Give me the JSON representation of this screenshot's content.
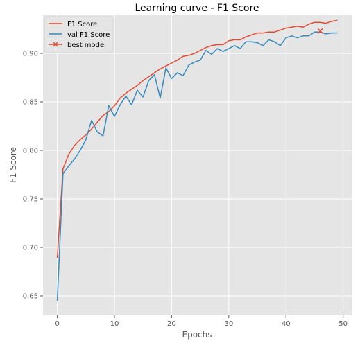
{
  "chart_data": {
    "type": "line",
    "title": "Learning curve - F1 Score",
    "xlabel": "Epochs",
    "ylabel": "F1 Score",
    "xlim": [
      -2.5,
      51.5
    ],
    "ylim": [
      0.63,
      0.94
    ],
    "xticks": [
      0,
      10,
      20,
      30,
      40,
      50
    ],
    "yticks": [
      0.65,
      0.7,
      0.75,
      0.8,
      0.85,
      0.9
    ],
    "grid": true,
    "legend_position": "upper-left",
    "series": [
      {
        "name": "F1 Score",
        "color": "#E24A33",
        "x": [
          0,
          1,
          2,
          3,
          4,
          5,
          6,
          7,
          8,
          9,
          10,
          11,
          12,
          13,
          14,
          15,
          16,
          17,
          18,
          19,
          20,
          21,
          22,
          23,
          24,
          25,
          26,
          27,
          28,
          29,
          30,
          31,
          32,
          33,
          34,
          35,
          36,
          37,
          38,
          39,
          40,
          41,
          42,
          43,
          44,
          45,
          46,
          47,
          48,
          49
        ],
        "values": [
          0.689,
          0.781,
          0.796,
          0.805,
          0.811,
          0.816,
          0.822,
          0.829,
          0.836,
          0.84,
          0.846,
          0.854,
          0.859,
          0.863,
          0.867,
          0.872,
          0.876,
          0.88,
          0.884,
          0.887,
          0.89,
          0.893,
          0.897,
          0.898,
          0.9,
          0.903,
          0.906,
          0.908,
          0.909,
          0.909,
          0.913,
          0.914,
          0.914,
          0.917,
          0.919,
          0.921,
          0.921,
          0.922,
          0.922,
          0.924,
          0.926,
          0.927,
          0.928,
          0.927,
          0.93,
          0.932,
          0.932,
          0.931,
          0.933,
          0.934
        ]
      },
      {
        "name": "val F1 Score",
        "color": "#348ABD",
        "x": [
          0,
          1,
          2,
          3,
          4,
          5,
          6,
          7,
          8,
          9,
          10,
          11,
          12,
          13,
          14,
          15,
          16,
          17,
          18,
          19,
          20,
          21,
          22,
          23,
          24,
          25,
          26,
          27,
          28,
          29,
          30,
          31,
          32,
          33,
          34,
          35,
          36,
          37,
          38,
          39,
          40,
          41,
          42,
          43,
          44,
          45,
          46,
          47,
          48,
          49
        ],
        "values": [
          0.645,
          0.776,
          0.784,
          0.791,
          0.8,
          0.811,
          0.831,
          0.819,
          0.815,
          0.846,
          0.835,
          0.847,
          0.856,
          0.847,
          0.862,
          0.855,
          0.872,
          0.878,
          0.854,
          0.885,
          0.874,
          0.88,
          0.877,
          0.888,
          0.891,
          0.893,
          0.903,
          0.899,
          0.905,
          0.902,
          0.905,
          0.908,
          0.905,
          0.912,
          0.912,
          0.911,
          0.908,
          0.914,
          0.912,
          0.908,
          0.916,
          0.918,
          0.916,
          0.918,
          0.918,
          0.922,
          0.922,
          0.92,
          0.921,
          0.921
        ]
      }
    ],
    "markers": [
      {
        "name": "best model",
        "color": "#E24A33",
        "symbol": "x",
        "x": 46,
        "y": 0.923
      }
    ]
  }
}
